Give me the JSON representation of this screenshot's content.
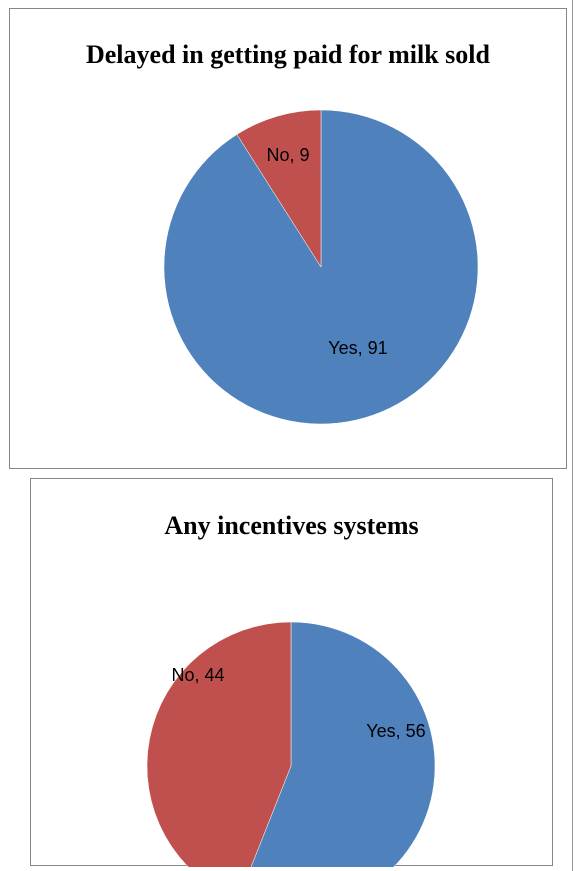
{
  "chart_data": [
    {
      "type": "pie",
      "title": "Delayed in getting paid for milk sold",
      "slices": [
        {
          "label": "Yes",
          "value": 91,
          "data_label": "Yes, 91",
          "color": "#4F81BD"
        },
        {
          "label": "No",
          "value": 9,
          "data_label": "No, 9",
          "color": "#C0504D"
        }
      ],
      "legend": "none"
    },
    {
      "type": "pie",
      "title": "Any incentives systems",
      "slices": [
        {
          "label": "Yes",
          "value": 56,
          "data_label": "Yes, 56",
          "color": "#4F81BD"
        },
        {
          "label": "No",
          "value": 44,
          "data_label": "No, 44",
          "color": "#C0504D"
        }
      ],
      "legend": "none"
    }
  ]
}
